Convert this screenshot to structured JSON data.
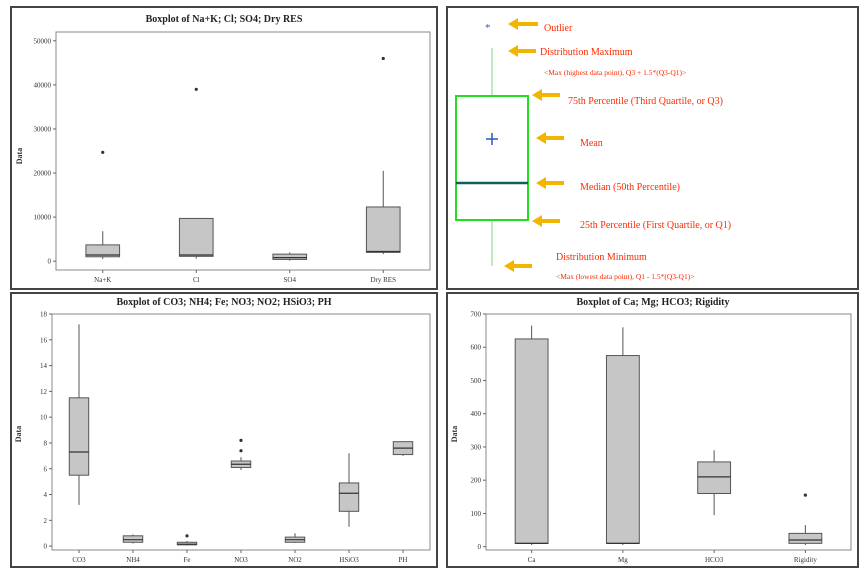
{
  "colors": {
    "box_fill": "#c6c6c6",
    "box_stroke": "#555555",
    "legend_text": "#ff2a00",
    "legend_arrow": "#f2b500",
    "legend_box": "#22dd22",
    "legend_median": "#155e5e",
    "legend_mean": "#2a56c6",
    "legend_whisker": "#7fd47f"
  },
  "legend": {
    "outlier": "Outlier",
    "max": "Distribution Maximum",
    "max_note": "<Max (highest data point), Q3 + 1.5*(Q3-Q1)>",
    "q3": "75th Percentile (Third Quartile, or Q3)",
    "mean": "Mean",
    "median": "Median (50th Percentile)",
    "q1": "25th Percentile (First Quartile, or Q1)",
    "min": "Distribution Minimum",
    "min_note": "<Max (lowest data point), Q1 - 1.5*(Q3-Q1)>"
  },
  "chart_data": [
    {
      "type": "box",
      "title": "Boxplot of Na+K; Cl; SO4; Dry RES",
      "ylabel": "Data",
      "ylim": [
        -2000,
        52000
      ],
      "yticks": [
        0,
        10000,
        20000,
        30000,
        40000,
        50000
      ],
      "grid": false,
      "categories": [
        "Na+K",
        "Cl",
        "SO4",
        "Dry RES"
      ],
      "boxes": [
        {
          "min": 500,
          "q1": 1000,
          "median": 1400,
          "q3": 3700,
          "max": 6800,
          "outliers": [
            24700
          ]
        },
        {
          "min": 600,
          "q1": 1100,
          "median": 1400,
          "q3": 9700,
          "max": 9700,
          "outliers": [
            39000
          ]
        },
        {
          "min": 100,
          "q1": 400,
          "median": 800,
          "q3": 1600,
          "max": 2000,
          "outliers": []
        },
        {
          "min": 1600,
          "q1": 2000,
          "median": 2200,
          "q3": 12300,
          "max": 20500,
          "outliers": [
            46000
          ]
        }
      ]
    },
    {
      "type": "box",
      "title": "Boxplot of CO3; NH4; Fe; NO3; NO2; HSiO3; PH",
      "ylabel": "Data",
      "ylim": [
        -0.3,
        18
      ],
      "yticks": [
        0,
        2,
        4,
        6,
        8,
        10,
        12,
        14,
        16,
        18
      ],
      "grid": false,
      "categories": [
        "CO3",
        "NH4",
        "Fe",
        "NO3",
        "NO2",
        "HSiO3",
        "PH"
      ],
      "boxes": [
        {
          "min": 3.2,
          "q1": 5.5,
          "median": 7.3,
          "q3": 11.5,
          "max": 17.2,
          "outliers": []
        },
        {
          "min": 0.2,
          "q1": 0.3,
          "median": 0.5,
          "q3": 0.8,
          "max": 0.9,
          "outliers": []
        },
        {
          "min": 0.05,
          "q1": 0.1,
          "median": 0.15,
          "q3": 0.3,
          "max": 0.4,
          "outliers": [
            0.8
          ]
        },
        {
          "min": 5.9,
          "q1": 6.1,
          "median": 6.35,
          "q3": 6.6,
          "max": 6.9,
          "outliers": [
            7.4,
            8.2
          ]
        },
        {
          "min": 0.25,
          "q1": 0.3,
          "median": 0.5,
          "q3": 0.7,
          "max": 1.0,
          "outliers": []
        },
        {
          "min": 1.5,
          "q1": 2.7,
          "median": 4.1,
          "q3": 4.9,
          "max": 7.2,
          "outliers": []
        },
        {
          "min": 7.0,
          "q1": 7.1,
          "median": 7.6,
          "q3": 8.1,
          "max": 8.1,
          "outliers": []
        }
      ]
    },
    {
      "type": "box",
      "title": "Boxplot of Ca; Mg; HCO3; Rigidity",
      "ylabel": "Data",
      "ylim": [
        -10,
        700
      ],
      "yticks": [
        0,
        100,
        200,
        300,
        400,
        500,
        600,
        700
      ],
      "grid": false,
      "categories": [
        "Ca",
        "Mg",
        "HCO3",
        "Rigidity"
      ],
      "boxes": [
        {
          "min": 5,
          "q1": 10,
          "median": 10,
          "q3": 625,
          "max": 665,
          "outliers": []
        },
        {
          "min": 5,
          "q1": 10,
          "median": 10,
          "q3": 575,
          "max": 660,
          "outliers": []
        },
        {
          "min": 95,
          "q1": 160,
          "median": 210,
          "q3": 255,
          "max": 290,
          "outliers": []
        },
        {
          "min": 5,
          "q1": 10,
          "median": 20,
          "q3": 40,
          "max": 65,
          "outliers": [
            155
          ]
        }
      ]
    }
  ]
}
